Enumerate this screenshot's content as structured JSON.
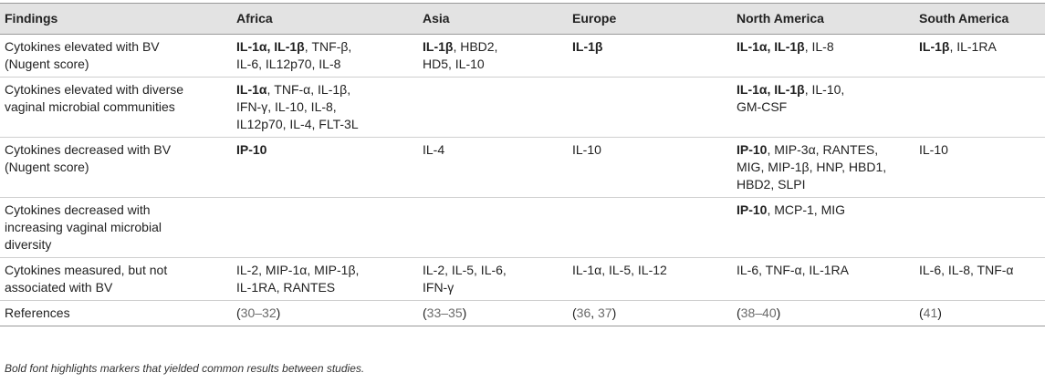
{
  "headers": [
    "Findings",
    "Africa",
    "Asia",
    "Europe",
    "North America",
    "South America"
  ],
  "rows": [
    {
      "finding": [
        "Cytokines elevated with BV",
        "(Nugent score)"
      ],
      "cells": [
        [
          [
            "IL-1α, IL-1β",
            "b"
          ],
          [
            ", TNF-β,",
            ""
          ],
          [
            "\nIL-6, IL12p70, IL-8",
            ""
          ]
        ],
        [
          [
            "IL-1β",
            "b"
          ],
          [
            ", HBD2,",
            ""
          ],
          [
            "\nHD5, IL-10",
            ""
          ]
        ],
        [
          [
            "IL-1β",
            "b"
          ]
        ],
        [
          [
            "IL-1α, IL-1β",
            "b"
          ],
          [
            ", IL-8",
            ""
          ]
        ],
        [
          [
            "IL-1β",
            "b"
          ],
          [
            ", IL-1RA",
            ""
          ]
        ]
      ]
    },
    {
      "finding": [
        "Cytokines elevated with diverse",
        "vaginal microbial communities"
      ],
      "cells": [
        [
          [
            "IL-1α",
            "b"
          ],
          [
            ", TNF-α, IL-1β,",
            ""
          ],
          [
            "\nIFN-γ, IL-10, IL-8,",
            ""
          ],
          [
            "\nIL12p70, IL-4, FLT-3L",
            ""
          ]
        ],
        [],
        [],
        [
          [
            "IL-1α, IL-1β",
            "b"
          ],
          [
            ", IL-10,",
            ""
          ],
          [
            "\nGM-CSF",
            ""
          ]
        ],
        []
      ]
    },
    {
      "finding": [
        "Cytokines decreased with BV",
        "(Nugent score)"
      ],
      "cells": [
        [
          [
            "IP-10",
            "b"
          ]
        ],
        [
          [
            "IL-4",
            ""
          ]
        ],
        [
          [
            "IL-10",
            ""
          ]
        ],
        [
          [
            "IP-10",
            "b"
          ],
          [
            ", MIP-3α, RANTES,",
            ""
          ],
          [
            "\nMIG, MIP-1β, HNP, HBD1,",
            ""
          ],
          [
            "\nHBD2, SLPI",
            ""
          ]
        ],
        [
          [
            "IL-10",
            ""
          ]
        ]
      ]
    },
    {
      "finding": [
        "Cytokines decreased with",
        "increasing vaginal microbial",
        "diversity"
      ],
      "cells": [
        [],
        [],
        [],
        [
          [
            "IP-10",
            "b"
          ],
          [
            ", MCP-1, MIG",
            ""
          ]
        ],
        []
      ]
    },
    {
      "finding": [
        "Cytokines measured, but not",
        "associated with BV"
      ],
      "cells": [
        [
          [
            "IL-2, MIP-1α, MIP-1β,",
            ""
          ],
          [
            "\nIL-1RA, RANTES",
            ""
          ]
        ],
        [
          [
            "IL-2, IL-5, IL-6,",
            ""
          ],
          [
            "\nIFN-γ",
            ""
          ]
        ],
        [
          [
            "IL-1α, IL-5, IL-12",
            ""
          ]
        ],
        [
          [
            "IL-6, TNF-α, IL-1RA",
            ""
          ]
        ],
        [
          [
            "IL-6, IL-8, TNF-α",
            ""
          ]
        ]
      ]
    }
  ],
  "references_label": "References",
  "references": {
    "africa": [
      "(",
      "30–32",
      ")"
    ],
    "asia": [
      "(",
      "33–35",
      ")"
    ],
    "europe": [
      "(",
      "36",
      ", ",
      "37",
      ")"
    ],
    "north_america": [
      "(",
      "38–40",
      ")"
    ],
    "south_america": [
      "(",
      "41",
      ")"
    ]
  },
  "footnote": "Bold font highlights markers that yielded common results between studies.",
  "colors": {
    "header_bg": "#e3e3e3",
    "reference_link": "#6a6a6a"
  }
}
